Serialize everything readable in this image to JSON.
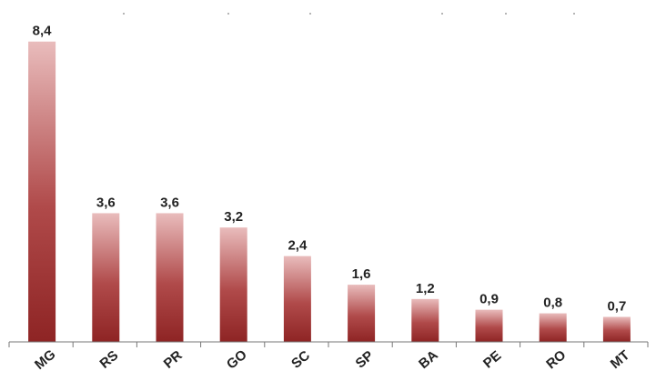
{
  "chart_data": {
    "type": "bar",
    "title": "",
    "xlabel": "",
    "ylabel": "",
    "categories": [
      "MG",
      "RS",
      "PR",
      "GO",
      "SC",
      "SP",
      "BA",
      "PE",
      "RO",
      "MT"
    ],
    "values": [
      8.4,
      3.6,
      3.6,
      3.2,
      2.4,
      1.6,
      1.2,
      0.9,
      0.8,
      0.7
    ],
    "value_labels": [
      "8,4",
      "3,6",
      "3,6",
      "3,2",
      "2,4",
      "1,6",
      "1,2",
      "0,9",
      "0,8",
      "0,7"
    ],
    "ylim": [
      0,
      8.8
    ],
    "grid": false,
    "legend": "none",
    "colors": {
      "bar_top": "#e9bcbc",
      "bar_mid": "#b04a4a",
      "bar_bottom": "#8e2424",
      "text": "#222222",
      "axis": "#777777"
    }
  }
}
